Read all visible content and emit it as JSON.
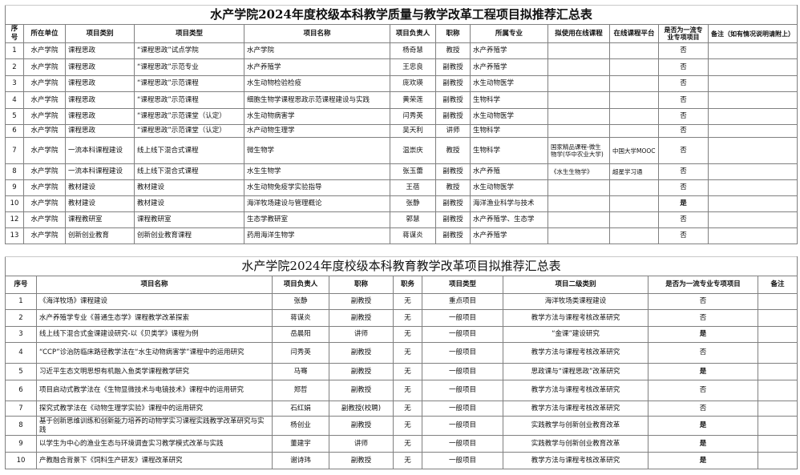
{
  "table1": {
    "title": "水产学院2024年度校级本科教学质量与教学改革工程项目拟推荐汇总表",
    "headers": [
      "序号",
      "所在单位",
      "项目类别",
      "项目类型",
      "项目名称",
      "项目负责人",
      "职称",
      "所属专业",
      "拟使用在线课程",
      "在线课程平台",
      "是否为一流专业专项项目",
      "备注（如有情况说明请附上）"
    ],
    "rows": [
      [
        "1",
        "水产学院",
        "课程思政",
        "“课程思政”试点学院",
        "水产学院",
        "杨奇慧",
        "教授",
        "水产养殖学",
        "",
        "",
        "否",
        ""
      ],
      [
        "2",
        "水产学院",
        "课程思政",
        "“课程思政”示范专业",
        "水产养殖学",
        "王忠良",
        "副教授",
        "水产养殖学",
        "",
        "",
        "否",
        ""
      ],
      [
        "3",
        "水产学院",
        "课程思政",
        "“课程思政”示范课程",
        "水生动物检验检疫",
        "庞欢瑛",
        "副教授",
        "水生动物医学",
        "",
        "",
        "否",
        ""
      ],
      [
        "4",
        "水产学院",
        "课程思政",
        "“课程思政”示范课程",
        "细胞生物学课程思政示范课程建设与实践",
        "黄荣莲",
        "副教授",
        "生物科学",
        "",
        "",
        "否",
        ""
      ],
      [
        "5",
        "水产学院",
        "课程思政",
        "“课程思政”示范课堂（认定）",
        "水生动物病害学",
        "闫秀英",
        "副教授",
        "水生动物医学",
        "",
        "",
        "否",
        ""
      ],
      [
        "6",
        "水产学院",
        "课程思政",
        "“课程思政”示范课堂（认定）",
        "水产动物生理学",
        "吴天利",
        "讲师",
        "生物科学",
        "",
        "",
        "否",
        ""
      ],
      [
        "7",
        "水产学院",
        "一流本科课程建设",
        "线上线下混合式课程",
        "微生物学",
        "温崇庆",
        "教授",
        "生物科学",
        "国家精品课程-微生物学(华中农业大学)",
        "中国大学MOOC",
        "否",
        ""
      ],
      [
        "8",
        "水产学院",
        "一流本科课程建设",
        "线上线下混合式课程",
        "水生生物学",
        "张玉蕾",
        "副教授",
        "水产养殖",
        "《水生生物学》",
        "超星学习通",
        "否",
        ""
      ],
      [
        "9",
        "水产学院",
        "教材建设",
        "教材建设",
        "水生动物免疫学实验指导",
        "王蓓",
        "教授",
        "水生动物医学",
        "",
        "",
        "否",
        ""
      ],
      [
        "10",
        "水产学院",
        "教材建设",
        "教材建设",
        "海洋牧场建设与管理概论",
        "张静",
        "副教授",
        "海洋渔业科学与技术",
        "",
        "",
        "是",
        ""
      ],
      [
        "12",
        "水产学院",
        "课程教研室",
        "课程教研室",
        "生态学教研室",
        "郭慧",
        "副教授",
        "水产养殖学、生态学",
        "",
        "",
        "否",
        ""
      ],
      [
        "13",
        "水产学院",
        "创新创业教育",
        "创新创业教育课程",
        "药用海洋生物学",
        "蒋谋炎",
        "副教授",
        "水产养殖学",
        "",
        "",
        "否",
        ""
      ]
    ]
  },
  "table2": {
    "title": "水产学院2024年度校级本科教育教学改革项目拟推荐汇总表",
    "headers": [
      "序号",
      "项目名称",
      "项目负责人",
      "职称",
      "职务",
      "项目类型",
      "项目二级类别",
      "是否为一流专业专项项目",
      "备注"
    ],
    "rows": [
      [
        "1",
        "《海洋牧场》课程建设",
        "张静",
        "副教授",
        "无",
        "重点项目",
        "海洋牧场类课程建设",
        "否",
        ""
      ],
      [
        "2",
        "水产养殖学专业《普通生态学》课程教学改革探索",
        "蒋谋炎",
        "副教授",
        "无",
        "一般项目",
        "教学方法与课程考核改革研究",
        "否",
        ""
      ],
      [
        "3",
        "线上线下混合式金课建设研究-以《贝类学》课程为例",
        "岳晨阳",
        "讲师",
        "无",
        "一般项目",
        "“金课”建设研究",
        "是",
        ""
      ],
      [
        "4",
        "“CCP”诊治防临床路径教学法在“水生动物病害学”课程中的运用研究",
        "闫秀英",
        "副教授",
        "无",
        "一般项目",
        "教学方法与课程考核改革研究",
        "否",
        ""
      ],
      [
        "5",
        "习近平生态文明思想有机融入鱼类学课程教学研究",
        "马骞",
        "副教授",
        "无",
        "一般项目",
        "思政课与“课程思政”改革研究",
        "是",
        ""
      ],
      [
        "6",
        "项目启动式教学法在《生物显微技术与电镜技术》课程中的运用研究",
        "郑哲",
        "副教授",
        "无",
        "一般项目",
        "教学方法与课程考核改革研究",
        "否",
        ""
      ],
      [
        "7",
        "探究式教学法在《动物生理学实验》课程中的运用研究",
        "石红娟",
        "副教授(校聘)",
        "无",
        "一般项目",
        "教学方法与课程考核改革研究",
        "否",
        ""
      ],
      [
        "8",
        "基于创新思维训练和创新能力培养的动物学实习课程实践教学改革研究与实践",
        "杨创业",
        "副教授",
        "无",
        "一般项目",
        "实践教学与创新创业教育改革",
        "是",
        ""
      ],
      [
        "9",
        "以学生为中心的渔业生态与环境调查实习教学模式改革与实践",
        "董建宇",
        "讲师",
        "无",
        "一般项目",
        "实践教学与创新创业教育改革",
        "是",
        ""
      ],
      [
        "10",
        "产教融合背景下《饲料生产研发》课程改革研究",
        "谢诗玮",
        "副教授",
        "无",
        "一般项目",
        "教学方法与课程考核改革研究",
        "是",
        ""
      ]
    ]
  }
}
